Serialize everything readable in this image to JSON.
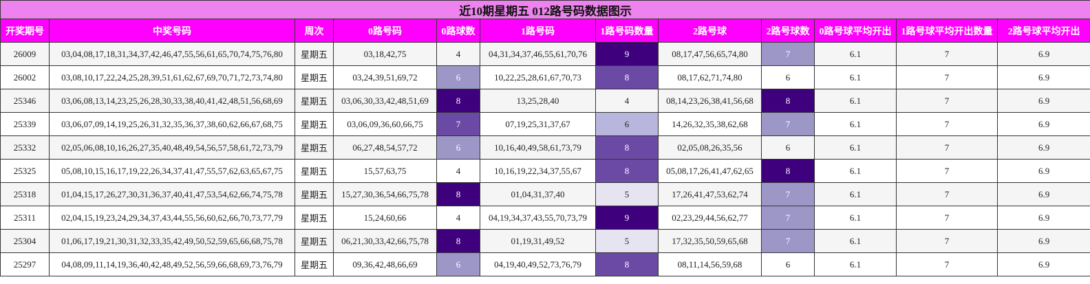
{
  "title": "近10期星期五 012路号码数据图示",
  "headers": [
    "开奖期号",
    "中奖号码",
    "周次",
    "0路号码",
    "0路球数",
    "1路号码",
    "1路号码数量",
    "2路号球",
    "2路号球数",
    "0路号球平均开出",
    "1路号球平均开出数量",
    "2路号球平均开出"
  ],
  "rows": [
    [
      "26009",
      "03,04,08,17,18,31,34,37,42,46,47,55,56,61,65,70,74,75,76,80",
      "星期五",
      "03,18,42,75",
      "4",
      "04,31,34,37,46,55,61,70,76",
      "9",
      "08,17,47,56,65,74,80",
      "7",
      "6.1",
      "7",
      "6.9"
    ],
    [
      "26002",
      "03,08,10,17,22,24,25,28,39,51,61,62,67,69,70,71,72,73,74,80",
      "星期五",
      "03,24,39,51,69,72",
      "6",
      "10,22,25,28,61,67,70,73",
      "8",
      "08,17,62,71,74,80",
      "6",
      "6.1",
      "7",
      "6.9"
    ],
    [
      "25346",
      "03,06,08,13,14,23,25,26,28,30,33,38,40,41,42,48,51,56,68,69",
      "星期五",
      "03,06,30,33,42,48,51,69",
      "8",
      "13,25,28,40",
      "4",
      "08,14,23,26,38,41,56,68",
      "8",
      "6.1",
      "7",
      "6.9"
    ],
    [
      "25339",
      "03,06,07,09,14,19,25,26,31,32,35,36,37,38,60,62,66,67,68,75",
      "星期五",
      "03,06,09,36,60,66,75",
      "7",
      "07,19,25,31,37,67",
      "6",
      "14,26,32,35,38,62,68",
      "7",
      "6.1",
      "7",
      "6.9"
    ],
    [
      "25332",
      "02,05,06,08,10,16,26,27,35,40,48,49,54,56,57,58,61,72,73,79",
      "星期五",
      "06,27,48,54,57,72",
      "6",
      "10,16,40,49,58,61,73,79",
      "8",
      "02,05,08,26,35,56",
      "6",
      "6.1",
      "7",
      "6.9"
    ],
    [
      "25325",
      "05,08,10,15,16,17,19,22,26,34,37,41,47,55,57,62,63,65,67,75",
      "星期五",
      "15,57,63,75",
      "4",
      "10,16,19,22,34,37,55,67",
      "8",
      "05,08,17,26,41,47,62,65",
      "8",
      "6.1",
      "7",
      "6.9"
    ],
    [
      "25318",
      "01,04,15,17,26,27,30,31,36,37,40,41,47,53,54,62,66,74,75,78",
      "星期五",
      "15,27,30,36,54,66,75,78",
      "8",
      "01,04,31,37,40",
      "5",
      "17,26,41,47,53,62,74",
      "7",
      "6.1",
      "7",
      "6.9"
    ],
    [
      "25311",
      "02,04,15,19,23,24,29,34,37,43,44,55,56,60,62,66,70,73,77,79",
      "星期五",
      "15,24,60,66",
      "4",
      "04,19,34,37,43,55,70,73,79",
      "9",
      "02,23,29,44,56,62,77",
      "7",
      "6.1",
      "7",
      "6.9"
    ],
    [
      "25304",
      "01,06,17,19,21,30,31,32,33,35,42,49,50,52,59,65,66,68,75,78",
      "星期五",
      "06,21,30,33,42,66,75,78",
      "8",
      "01,19,31,49,52",
      "5",
      "17,32,35,50,59,65,68",
      "7",
      "6.1",
      "7",
      "6.9"
    ],
    [
      "25297",
      "04,08,09,11,14,19,36,40,42,48,49,52,56,59,66,68,69,73,76,79",
      "星期五",
      "09,36,42,48,66,69",
      "6",
      "04,19,40,49,52,73,76,79",
      "8",
      "08,11,14,56,59,68",
      "6",
      "6.1",
      "7",
      "6.9"
    ]
  ],
  "heat_colors": {
    "4": "#ffffff",
    "5": "#e6e4f1",
    "6": "#b8b6dc",
    "7": "#9d97c8",
    "8": "#6a4aa5",
    "9": "#3f007d"
  },
  "count_colors_by_column": {
    "c0": {
      "4": "#ffffff",
      "6": "#9d97c8",
      "7": "#6a4aa5",
      "8": "#3f007d"
    },
    "c1": {
      "4": "#ffffff",
      "5": "#e6e4f1",
      "6": "#b8b6dc",
      "8": "#6a4aa5",
      "9": "#3f007d"
    },
    "c2": {
      "6": "#ffffff",
      "7": "#9d97c8",
      "8": "#3f007d"
    }
  }
}
